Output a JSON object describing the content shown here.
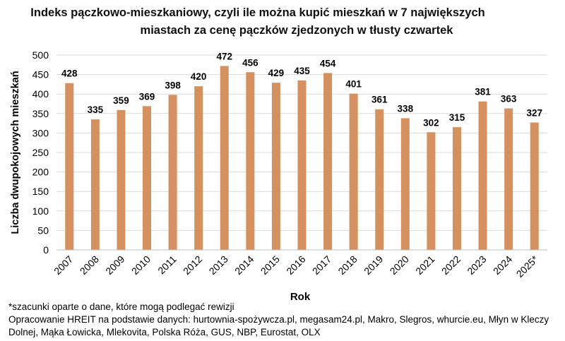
{
  "chart_data": {
    "type": "bar",
    "title_line1": "Indeks pączkowo-mieszkaniowy, czyli ile można kupić mieszkań w 7 największych",
    "title_line2": "miastach za cenę pączków zjedzonych w tłusty czwartek",
    "xlabel": "Rok",
    "ylabel": "Liczba dwupokojowych mieszkań",
    "ylim": [
      0,
      500
    ],
    "yticks": [
      0,
      50,
      100,
      150,
      200,
      250,
      300,
      350,
      400,
      450,
      500
    ],
    "categories": [
      "2007",
      "2008",
      "2009",
      "2010",
      "2011",
      "2012",
      "2013",
      "2014",
      "2015",
      "2016",
      "2017",
      "2018",
      "2019",
      "2020",
      "2021",
      "2022",
      "2023",
      "2024",
      "2025*"
    ],
    "values": [
      428,
      335,
      359,
      369,
      398,
      420,
      472,
      456,
      429,
      435,
      454,
      401,
      361,
      338,
      302,
      315,
      381,
      363,
      327
    ],
    "bar_color": "#D4915F",
    "grid": true,
    "legend": "none"
  },
  "footnotes": {
    "estimate_note": "*szacunki oparte o dane, które mogą podlegać rewizji",
    "source": "Opracowanie HREIT na podstawie danych: hurtownia-spożywcza.pl, megasam24.pl, Makro, Slegros, whurcie.eu, Młyn w Kleczy Dolnej, Mąka Łowicka, Mlekovita, Polska Róża, GUS, NBP, Eurostat, OLX"
  }
}
